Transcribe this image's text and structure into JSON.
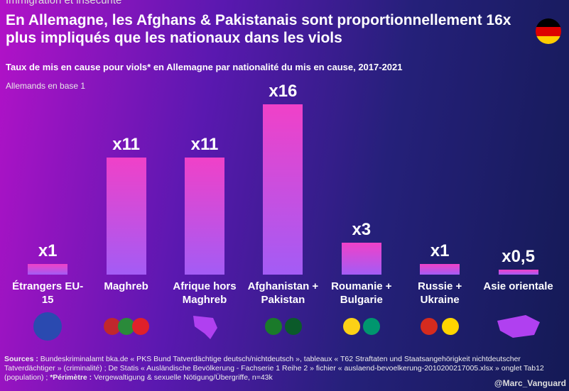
{
  "chart_data": {
    "type": "bar",
    "kicker": "Immigration et insécurité",
    "title": "En Allemagne, les Afghans & Pakistanais sont proportionnellement 16x plus impliqués que les nationaux dans les viols",
    "subtitle": "Taux de mis en cause pour viols* en Allemagne par nationalité du mis en cause, 2017-2021",
    "base_note": "Allemands en base 1",
    "categories": [
      "Étrangers EU-15",
      "Maghreb",
      "Afrique hors Maghreb",
      "Afghanistan + Pakistan",
      "Roumanie + Bulgarie",
      "Russie + Ukraine",
      "Asie orientale"
    ],
    "values": [
      1,
      11,
      11,
      16,
      3,
      1,
      0.5
    ],
    "value_labels": [
      "x1",
      "x11",
      "x11",
      "x16",
      "x3",
      "x1",
      "x0,5"
    ],
    "ylim": [
      0,
      16
    ],
    "sources_label": "Sources :",
    "sources_text": "Bundeskriminalamt bka.de « PKS Bund Tatverdächtige deutsch/nichtdeutsch », tableaux « T62 Straftaten und Staatsangehörigkeit nichtdeutscher Tatverdächtiger » (criminalité) ; De Statis « Ausländische Bevölkerung - Fachserie 1 Reihe 2 » fichier « auslaend-bevoelkerung-2010200217005.xlsx » onglet Tab12 (population) ;",
    "perimetre_label": "*Périmètre :",
    "perimetre_text": "Vergewaltigung & sexuelle Nötigung/Übergriffe, n=43k",
    "credit": "@Marc_Vanguard"
  }
}
